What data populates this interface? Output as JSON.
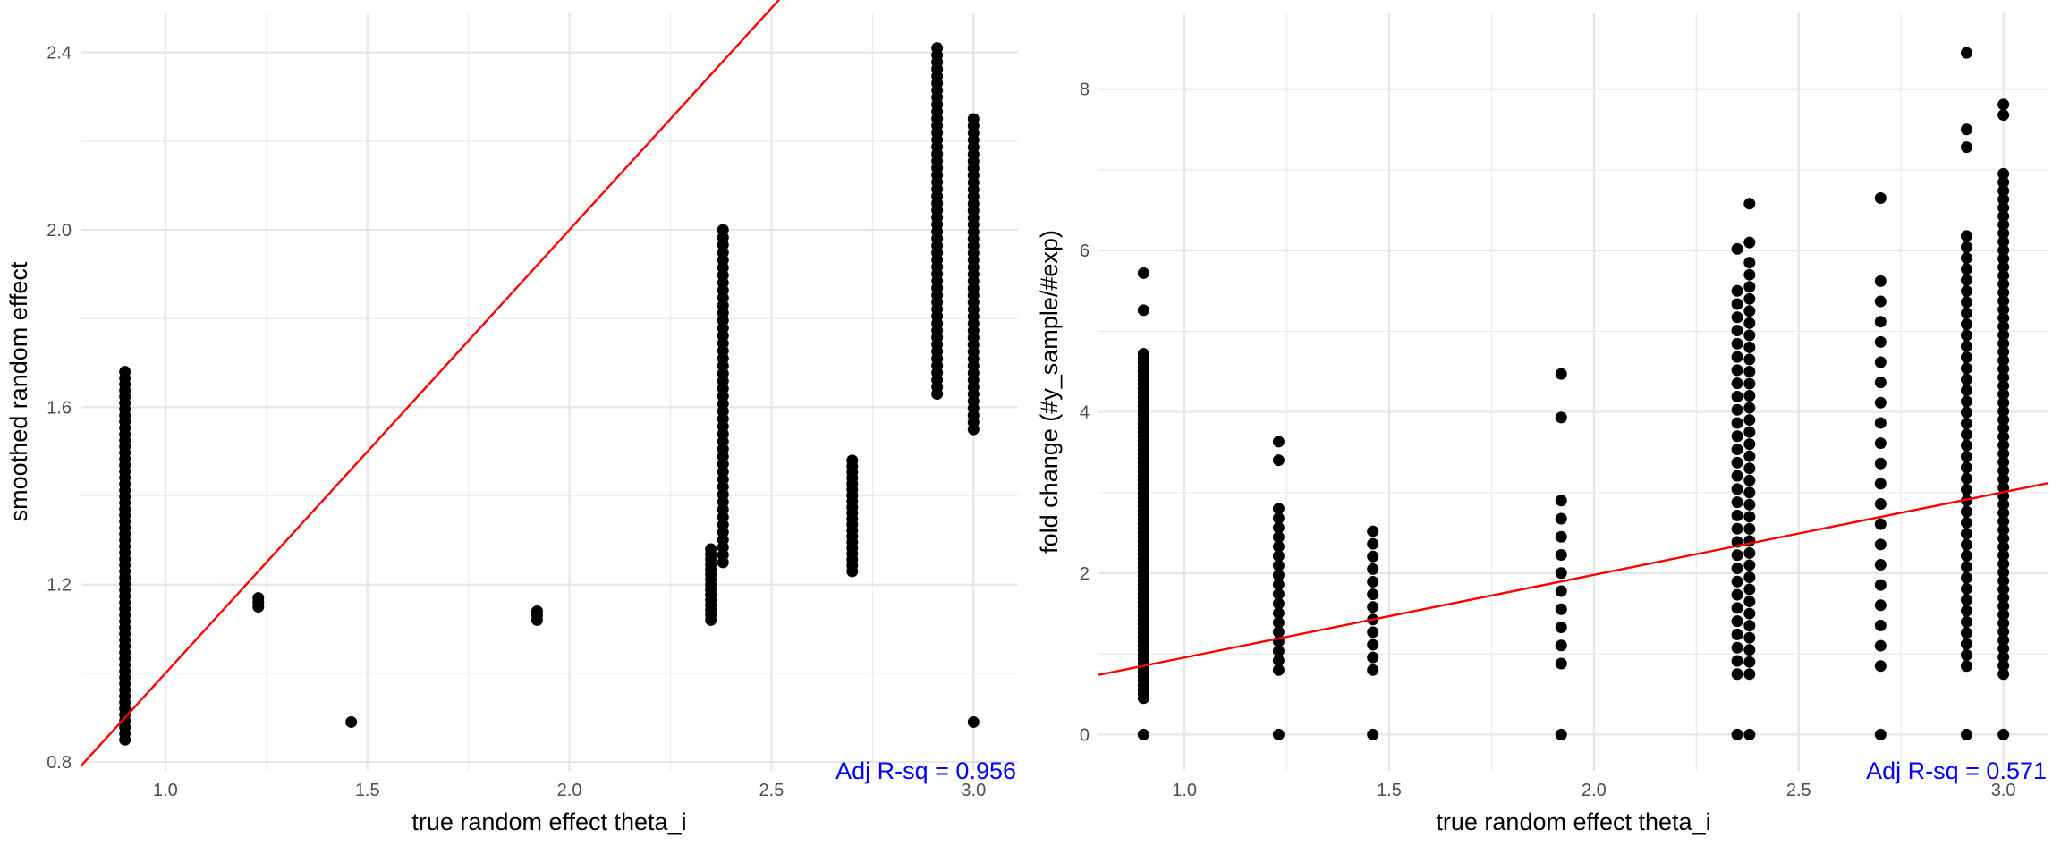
{
  "chart_data": [
    {
      "type": "scatter",
      "xlabel": "true random effect theta_i",
      "ylabel": "smoothed random effect",
      "xlim": [
        0.79,
        3.11
      ],
      "ylim": [
        0.78,
        2.49
      ],
      "x_ticks": [
        1.0,
        1.5,
        2.0,
        2.5,
        3.0
      ],
      "x_tick_labels": [
        "1.0",
        "1.5",
        "2.0",
        "2.5",
        "3.0"
      ],
      "y_ticks": [
        0.8,
        1.2,
        1.6,
        2.0,
        2.4
      ],
      "y_tick_labels": [
        "0.8",
        "1.2",
        "1.6",
        "2.0",
        "2.4"
      ],
      "grid": true,
      "reference_line": {
        "intercept": 0.0,
        "slope": 1.0,
        "color": "#ff0000"
      },
      "annotation": {
        "text": "Adj R-sq = 0.956",
        "position": "bottom-right",
        "color": "#0000ff"
      },
      "clusters": [
        {
          "x": 0.9,
          "y_min": 0.85,
          "y_max": 1.68,
          "n": 60
        },
        {
          "x": 1.23,
          "y_min": 1.15,
          "y_max": 1.17,
          "n": 3
        },
        {
          "x": 1.46,
          "y_min": 0.89,
          "y_max": 0.89,
          "n": 1
        },
        {
          "x": 1.92,
          "y_min": 1.12,
          "y_max": 1.14,
          "n": 3
        },
        {
          "x": 2.35,
          "y_min": 1.12,
          "y_max": 1.28,
          "n": 15
        },
        {
          "x": 2.38,
          "y_min": 1.25,
          "y_max": 2.0,
          "n": 45
        },
        {
          "x": 2.7,
          "y_min": 1.23,
          "y_max": 1.48,
          "n": 20
        },
        {
          "x": 2.91,
          "y_min": 1.63,
          "y_max": 2.41,
          "n": 50
        },
        {
          "x": 3.0,
          "y_min": 1.55,
          "y_max": 2.25,
          "n": 45
        },
        {
          "x": 3.0,
          "y_min": 0.89,
          "y_max": 0.89,
          "n": 1
        }
      ]
    },
    {
      "type": "scatter",
      "xlabel": "true random effect theta_i",
      "ylabel": "fold change (#y_sample/#exp)",
      "xlim": [
        0.79,
        3.11
      ],
      "ylim": [
        -0.45,
        8.95
      ],
      "x_ticks": [
        1.0,
        1.5,
        2.0,
        2.5,
        3.0
      ],
      "x_tick_labels": [
        "1.0",
        "1.5",
        "2.0",
        "2.5",
        "3.0"
      ],
      "y_ticks": [
        0,
        2,
        4,
        6,
        8
      ],
      "y_tick_labels": [
        "0",
        "2",
        "4",
        "6",
        "8"
      ],
      "grid": true,
      "reference_line": {
        "intercept": -0.07,
        "slope": 1.025,
        "color": "#ff0000"
      },
      "annotation": {
        "text": "Adj R-sq = 0.571",
        "position": "bottom-right",
        "color": "#0000ff"
      },
      "points": [
        {
          "x": 0.9,
          "y": 0.0
        },
        {
          "x": 0.9,
          "y": 5.72
        },
        {
          "x": 0.9,
          "y": 5.26
        },
        {
          "x": 1.23,
          "y": 0.0
        },
        {
          "x": 1.23,
          "y": 3.63
        },
        {
          "x": 1.23,
          "y": 3.4
        },
        {
          "x": 1.46,
          "y": 0.0
        },
        {
          "x": 1.92,
          "y": 0.0
        },
        {
          "x": 1.92,
          "y": 4.47
        },
        {
          "x": 1.92,
          "y": 3.93
        },
        {
          "x": 2.35,
          "y": 0.0
        },
        {
          "x": 2.38,
          "y": 0.0
        },
        {
          "x": 2.38,
          "y": 6.58
        },
        {
          "x": 2.35,
          "y": 6.02
        },
        {
          "x": 2.38,
          "y": 6.1
        },
        {
          "x": 2.7,
          "y": 0.0
        },
        {
          "x": 2.7,
          "y": 6.65
        },
        {
          "x": 2.91,
          "y": 0.0
        },
        {
          "x": 2.91,
          "y": 8.45
        },
        {
          "x": 2.91,
          "y": 7.5
        },
        {
          "x": 2.91,
          "y": 7.28
        },
        {
          "x": 3.0,
          "y": 0.0
        },
        {
          "x": 3.0,
          "y": 7.81
        },
        {
          "x": 3.0,
          "y": 7.68
        }
      ],
      "clusters": [
        {
          "x": 0.9,
          "y_min": 0.45,
          "y_max": 4.72,
          "n": 80
        },
        {
          "x": 1.23,
          "y_min": 0.8,
          "y_max": 2.8,
          "n": 18
        },
        {
          "x": 1.46,
          "y_min": 0.8,
          "y_max": 2.52,
          "n": 12
        },
        {
          "x": 1.92,
          "y_min": 0.88,
          "y_max": 2.9,
          "n": 10
        },
        {
          "x": 2.35,
          "y_min": 0.75,
          "y_max": 5.5,
          "n": 30
        },
        {
          "x": 2.38,
          "y_min": 0.75,
          "y_max": 5.85,
          "n": 35
        },
        {
          "x": 2.7,
          "y_min": 0.85,
          "y_max": 5.62,
          "n": 20
        },
        {
          "x": 2.91,
          "y_min": 0.85,
          "y_max": 6.18,
          "n": 40
        },
        {
          "x": 3.0,
          "y_min": 0.75,
          "y_max": 6.95,
          "n": 60
        }
      ]
    }
  ]
}
